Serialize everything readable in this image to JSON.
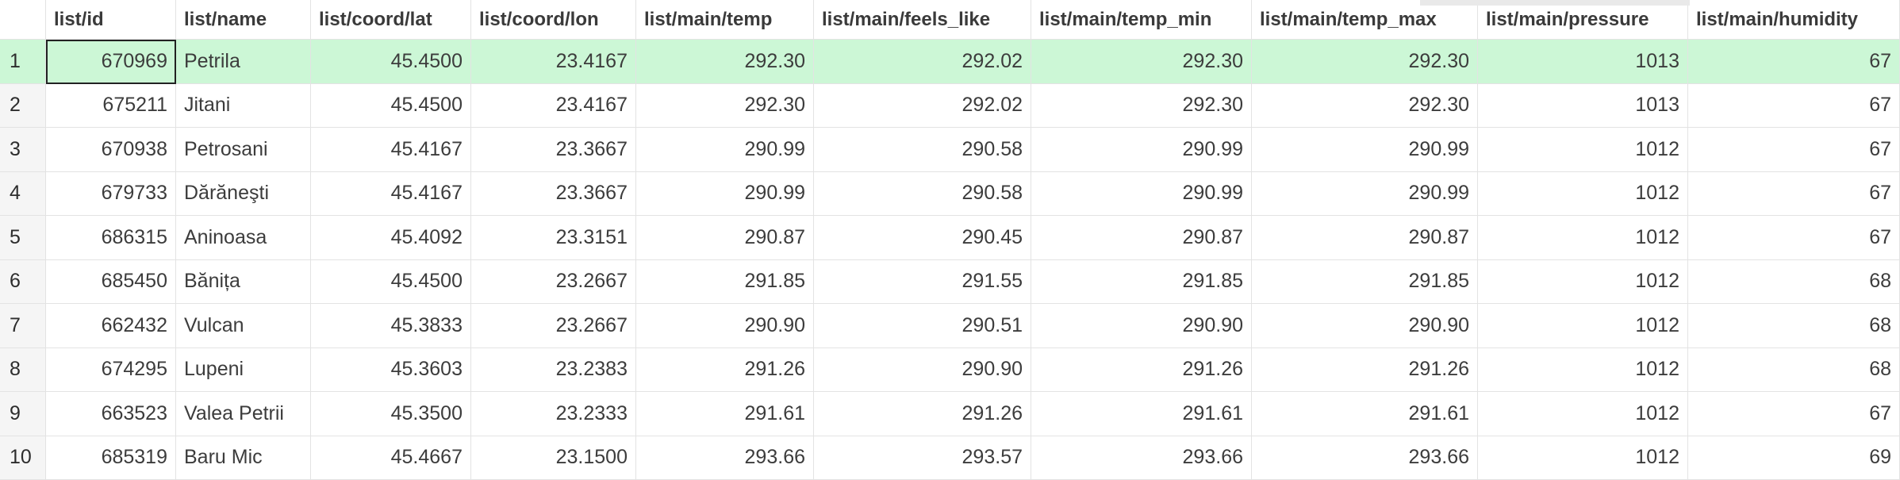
{
  "columns": [
    "",
    "list/id",
    "list/name",
    "list/coord/lat",
    "list/coord/lon",
    "list/main/temp",
    "list/main/feels_like",
    "list/main/temp_min",
    "list/main/temp_max",
    "list/main/pressure",
    "list/main/humidity"
  ],
  "rows": [
    {
      "n": "1",
      "id": "670969",
      "name": "Petrila",
      "lat": "45.4500",
      "lon": "23.4167",
      "temp": "292.30",
      "feels": "292.02",
      "tmin": "292.30",
      "tmax": "292.30",
      "pressure": "1013",
      "humidity": "67"
    },
    {
      "n": "2",
      "id": "675211",
      "name": "Jitani",
      "lat": "45.4500",
      "lon": "23.4167",
      "temp": "292.30",
      "feels": "292.02",
      "tmin": "292.30",
      "tmax": "292.30",
      "pressure": "1013",
      "humidity": "67"
    },
    {
      "n": "3",
      "id": "670938",
      "name": "Petrosani",
      "lat": "45.4167",
      "lon": "23.3667",
      "temp": "290.99",
      "feels": "290.58",
      "tmin": "290.99",
      "tmax": "290.99",
      "pressure": "1012",
      "humidity": "67"
    },
    {
      "n": "4",
      "id": "679733",
      "name": "Dărăneşti",
      "lat": "45.4167",
      "lon": "23.3667",
      "temp": "290.99",
      "feels": "290.58",
      "tmin": "290.99",
      "tmax": "290.99",
      "pressure": "1012",
      "humidity": "67"
    },
    {
      "n": "5",
      "id": "686315",
      "name": "Aninoasa",
      "lat": "45.4092",
      "lon": "23.3151",
      "temp": "290.87",
      "feels": "290.45",
      "tmin": "290.87",
      "tmax": "290.87",
      "pressure": "1012",
      "humidity": "67"
    },
    {
      "n": "6",
      "id": "685450",
      "name": "Bănița",
      "lat": "45.4500",
      "lon": "23.2667",
      "temp": "291.85",
      "feels": "291.55",
      "tmin": "291.85",
      "tmax": "291.85",
      "pressure": "1012",
      "humidity": "68"
    },
    {
      "n": "7",
      "id": "662432",
      "name": "Vulcan",
      "lat": "45.3833",
      "lon": "23.2667",
      "temp": "290.90",
      "feels": "290.51",
      "tmin": "290.90",
      "tmax": "290.90",
      "pressure": "1012",
      "humidity": "68"
    },
    {
      "n": "8",
      "id": "674295",
      "name": "Lupeni",
      "lat": "45.3603",
      "lon": "23.2383",
      "temp": "291.26",
      "feels": "290.90",
      "tmin": "291.26",
      "tmax": "291.26",
      "pressure": "1012",
      "humidity": "68"
    },
    {
      "n": "9",
      "id": "663523",
      "name": "Valea Petrii",
      "lat": "45.3500",
      "lon": "23.2333",
      "temp": "291.61",
      "feels": "291.26",
      "tmin": "291.61",
      "tmax": "291.61",
      "pressure": "1012",
      "humidity": "67"
    },
    {
      "n": "10",
      "id": "685319",
      "name": "Baru Mic",
      "lat": "45.4667",
      "lon": "23.1500",
      "temp": "293.66",
      "feels": "293.57",
      "tmin": "293.66",
      "tmax": "293.66",
      "pressure": "1012",
      "humidity": "69"
    }
  ],
  "selection": {
    "row": 0,
    "active_column": "id",
    "highlight_color": "#ccf7d6"
  }
}
